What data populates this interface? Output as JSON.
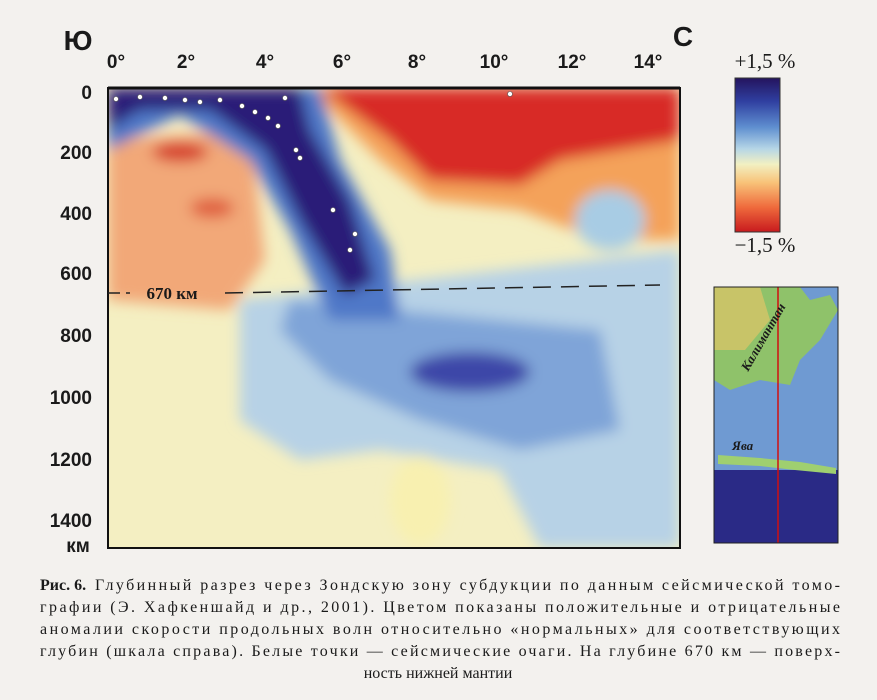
{
  "figure": {
    "left_label": "Ю",
    "right_label": "С",
    "x_ticks": [
      "0°",
      "2°",
      "4°",
      "6°",
      "8°",
      "10°",
      "12°",
      "14°"
    ],
    "y_ticks": [
      "0",
      "200",
      "400",
      "600",
      "800",
      "1000",
      "1200",
      "1400"
    ],
    "y_unit": "км",
    "boundary_label": "670 км",
    "colorbar_top": "+1,5 %",
    "colorbar_bottom": "−1,5 %",
    "map_labels": [
      "Калимантан",
      "Ява"
    ]
  },
  "caption": {
    "label": "Рис. 6.",
    "lines": [
      "Глубинный разрез через Зондскую зону субдукции по данным сейсмической томо-",
      "графии (Э. Хафкеншайд и др., 2001). Цветом показаны положительные и отрицательные",
      "аномалии скорости продольных волн относительно «нормальных» для соответствующих",
      "глубин (шкала справа). Белые точки — сейсмические очаги. На глубине 670 км — поверх-",
      "ность нижней мантии"
    ]
  }
}
